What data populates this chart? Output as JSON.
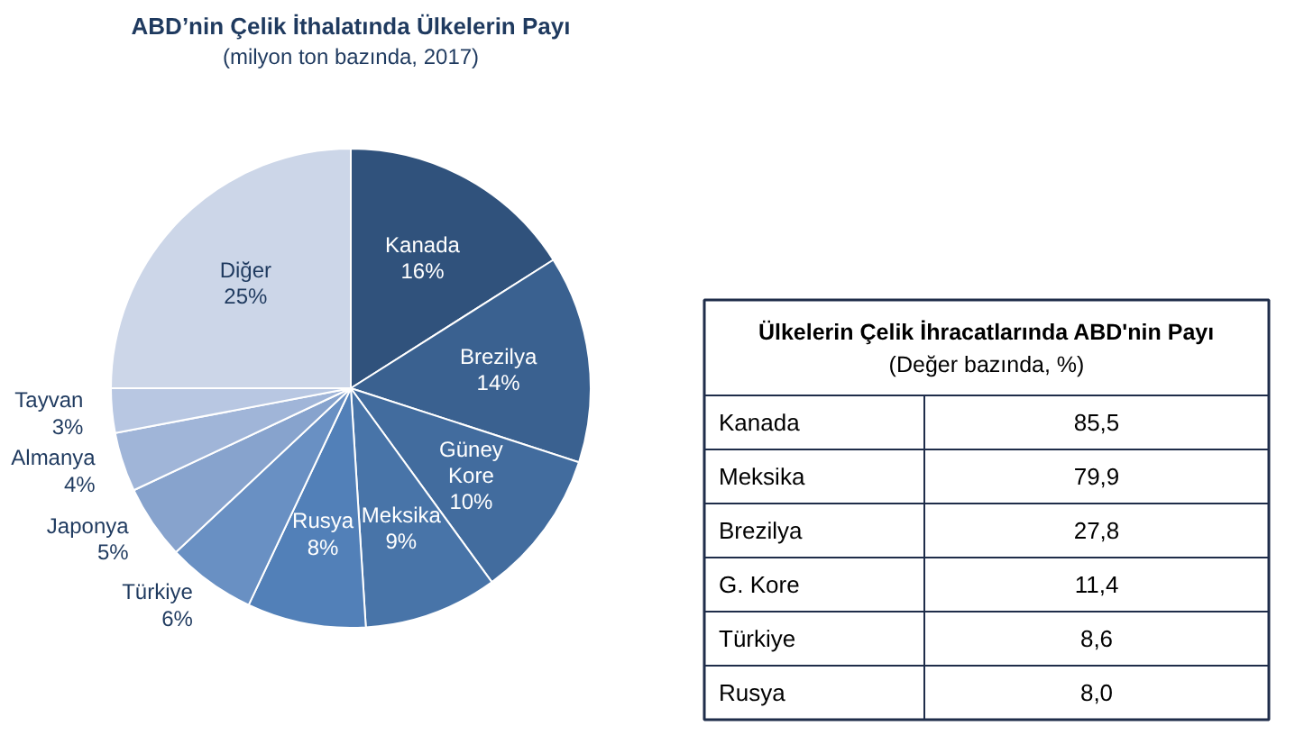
{
  "chart_data": [
    {
      "type": "pie",
      "title": "ABD’nin Çelik İthalatında Ülkelerin Payı",
      "subtitle": "(milyon ton bazında, 2017)",
      "categories": [
        "Kanada",
        "Brezilya",
        "Güney Kore",
        "Meksika",
        "Rusya",
        "Türkiye",
        "Japonya",
        "Almanya",
        "Tayvan",
        "Diğer"
      ],
      "values": [
        16,
        14,
        10,
        9,
        8,
        6,
        5,
        4,
        3,
        25
      ],
      "colors": [
        "#30527c",
        "#3a6190",
        "#426c9e",
        "#4874a8",
        "#5280b8",
        "#6990c3",
        "#87a3cd",
        "#a0b5d8",
        "#b8c7e2",
        "#ccd6e8"
      ],
      "value_labels": [
        "16%",
        "14%",
        "10%",
        "9%",
        "8%",
        "6%",
        "5%",
        "4%",
        "3%",
        "25%"
      ]
    },
    {
      "type": "other",
      "title": "Ülkelerin Çelik İhracatlarında ABD'nin Payı",
      "subtitle": "(Değer bazında, %)",
      "categories": [
        "Kanada",
        "Meksika",
        "Brezilya",
        "G. Kore",
        "Türkiye",
        "Rusya"
      ],
      "value_labels": [
        "85,5",
        "79,9",
        "27,8",
        "11,4",
        "8,6",
        "8,0"
      ]
    }
  ]
}
